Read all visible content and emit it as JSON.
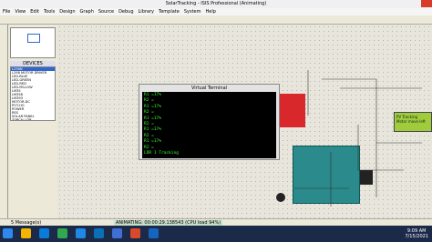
{
  "window": {
    "title": "SolarTracking - ISIS Professional (Animating)"
  },
  "menu": [
    "File",
    "View",
    "Edit",
    "Tools",
    "Design",
    "Graph",
    "Source",
    "Debug",
    "Library",
    "Template",
    "System",
    "Help"
  ],
  "devices": {
    "header": "DEVICES",
    "items": [
      "L298N",
      "L298 MOTOR DRIVER",
      "LED-BLUE",
      "LED-GREEN",
      "LED-RED",
      "LED-YELLOW",
      "LM35",
      "LM358",
      "LM393",
      "MOTOR-DC",
      "POT-HG",
      "POWER",
      "RES",
      "SOLAR PANEL",
      "TORCH_LDR"
    ]
  },
  "terminal": {
    "title": "Virtual Terminal",
    "lines": [
      "R1 =17%",
      "R2 =",
      "R1 =17%",
      "R2 =",
      "R1 =17%",
      "R2 =",
      "R1 =17%",
      "R2 =",
      "R1 =17%",
      "R2 =",
      "LDR 1 Tracking"
    ]
  },
  "lcd": {
    "lines": [
      "PV Tracking",
      "Motor move left"
    ]
  },
  "status": {
    "messages": "5 Message(s)",
    "animation": "ANIMATING: 00:00:29.138543 (CPU load 94%)"
  },
  "taskbar": {
    "time": "9:09 AM",
    "date": "7/15/2021"
  }
}
